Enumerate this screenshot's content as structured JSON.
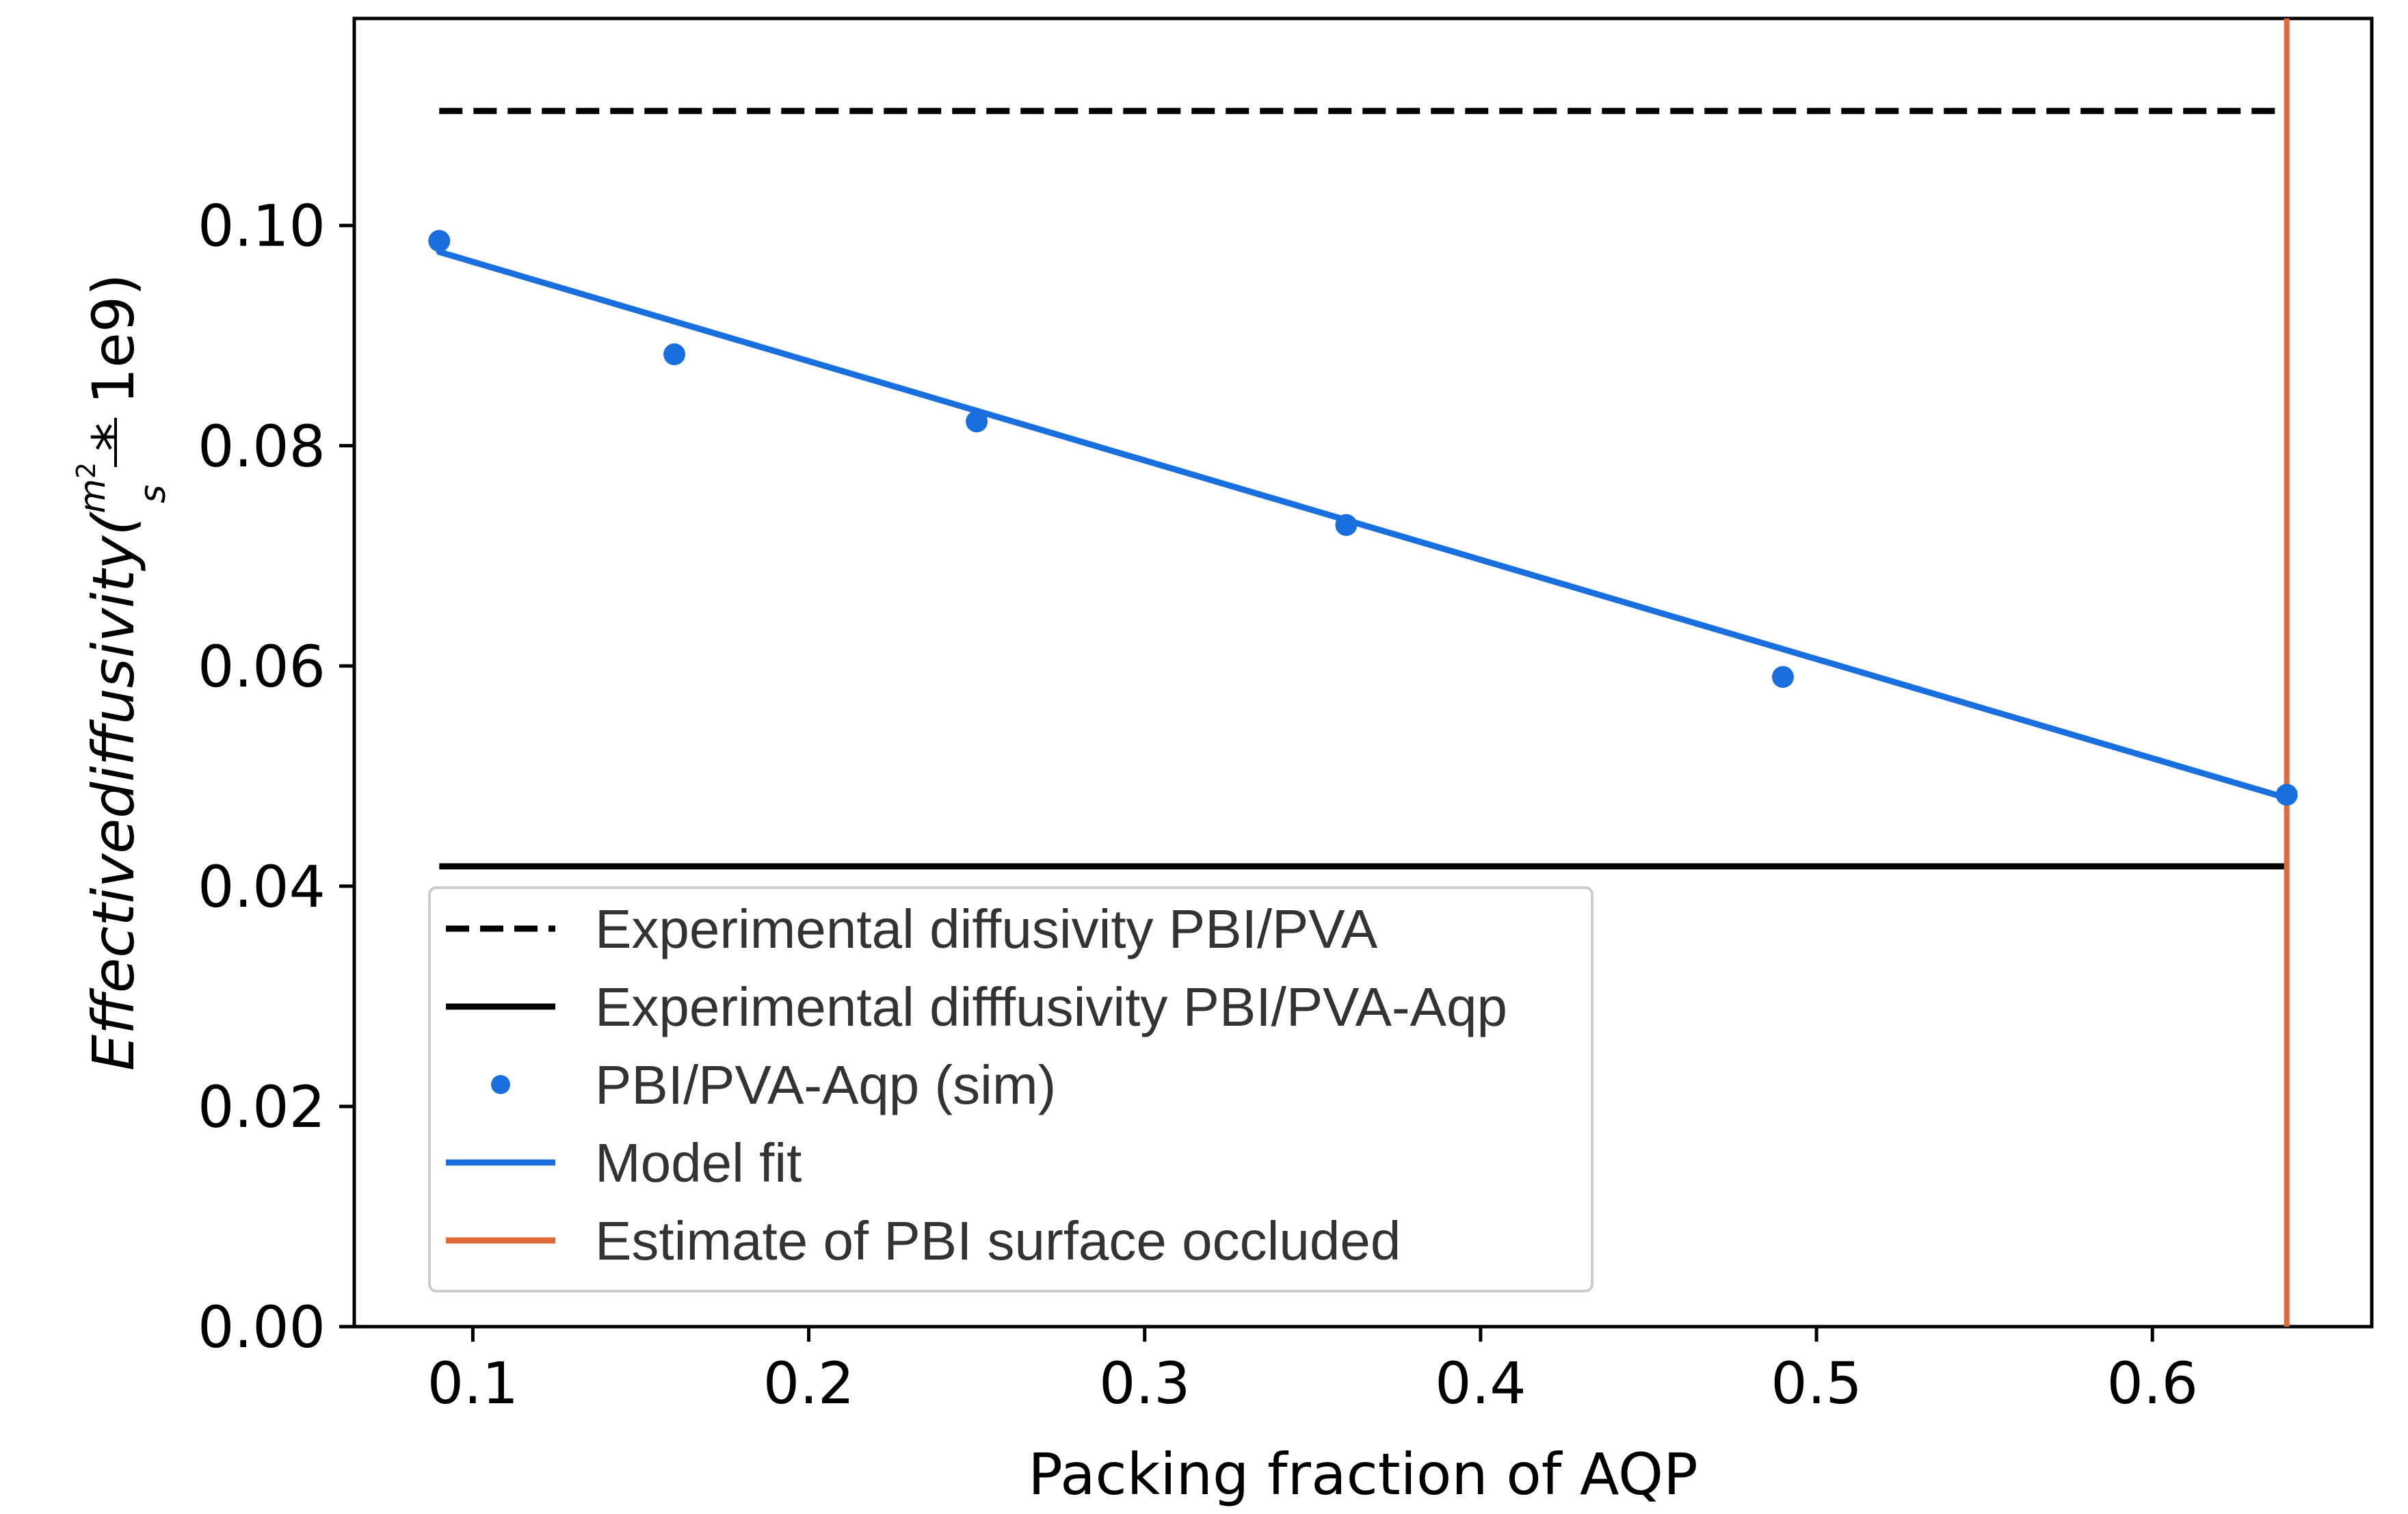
{
  "chart_data": {
    "type": "scatter",
    "title": "",
    "xlabel": "Packing fraction of AQP",
    "ylabel": {
      "main": "Effectivediffusivity(",
      "frac_num": "m",
      "frac_sup": "2",
      "frac_den": "s",
      "tail": " * 1e9)"
    },
    "xlim": [
      0.0647,
      0.6653
    ],
    "ylim": [
      0.0,
      0.1188
    ],
    "xticks": [
      0.1,
      0.2,
      0.3,
      0.4,
      0.5,
      0.6
    ],
    "xtick_labels": [
      "0.1",
      "0.2",
      "0.3",
      "0.4",
      "0.5",
      "0.6"
    ],
    "yticks": [
      0.0,
      0.02,
      0.04,
      0.06,
      0.08,
      0.1
    ],
    "ytick_labels": [
      "0.00",
      "0.02",
      "0.04",
      "0.06",
      "0.08",
      "0.10"
    ],
    "series": [
      {
        "name": "Experimental diffusivity PBI/PVA",
        "kind": "hline",
        "style": "dashed",
        "color": "#000000",
        "y": 0.1104,
        "x_range": [
          0.09,
          0.64
        ]
      },
      {
        "name": "Experimental difffusivity PBI/PVA-Aqp",
        "kind": "hline",
        "style": "solid",
        "color": "#000000",
        "y": 0.0418,
        "x_range": [
          0.09,
          0.64
        ]
      },
      {
        "name": "PBI/PVA-Aqp (sim)",
        "kind": "scatter",
        "color": "#1a6fdf",
        "x": [
          0.09,
          0.16,
          0.25,
          0.36,
          0.49,
          0.64
        ],
        "y": [
          0.0986,
          0.0883,
          0.0822,
          0.0728,
          0.059,
          0.0483
        ]
      },
      {
        "name": "Model fit",
        "kind": "line",
        "color": "#1a6fdf",
        "x": [
          0.09,
          0.64
        ],
        "y": [
          0.0976,
          0.048
        ]
      },
      {
        "name": "Estimate of PBI surface occluded",
        "kind": "vline",
        "color": "#e0693a",
        "x": 0.64
      }
    ],
    "legend": {
      "position": "lower-left",
      "entries": [
        "Experimental diffusivity PBI/PVA",
        "Experimental difffusivity PBI/PVA-Aqp",
        "PBI/PVA-Aqp (sim)",
        "Model fit",
        "Estimate of PBI surface occluded"
      ]
    },
    "grid": false
  }
}
